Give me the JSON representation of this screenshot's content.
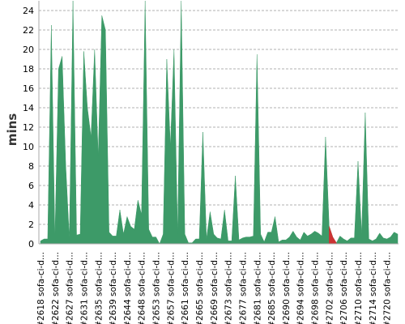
{
  "chart_data": {
    "type": "area",
    "y_label": "mins",
    "categories": [
      "#2618 sofa-ci-d...",
      null,
      null,
      null,
      "#2622 sofa-ci-d...",
      null,
      null,
      null,
      "#2627 sofa-ci-d...",
      null,
      null,
      null,
      "#2631 sofa-ci-d...",
      null,
      null,
      null,
      "#2635 sofa-ci-d...",
      null,
      null,
      null,
      "#2639 sofa-ci-d...",
      null,
      null,
      null,
      "#2644 sofa-ci-d...",
      null,
      null,
      null,
      "#2648 sofa-ci-d...",
      null,
      null,
      null,
      "#2653 sofa-ci-d...",
      null,
      null,
      null,
      "#2657 sofa-ci-d...",
      null,
      null,
      null,
      "#2661 sofa-ci-d...",
      null,
      null,
      null,
      "#2665 sofa-ci-d...",
      null,
      null,
      null,
      "#2669 sofa-ci-d...",
      null,
      null,
      null,
      "#2673 sofa-ci-d...",
      null,
      null,
      null,
      "#2677 sofa-ci-d...",
      null,
      null,
      null,
      "#2681 sofa-ci-d...",
      null,
      null,
      null,
      "#2685 sofa-ci-d...",
      null,
      null,
      null,
      "#2690 sofa-ci-d...",
      null,
      null,
      null,
      "#2694 sofa-ci-d...",
      null,
      null,
      null,
      "#2698 sofa-ci-d...",
      null,
      null,
      null,
      "#2702 sofa-ci-d...",
      null,
      null,
      null,
      "#2706 sofa-ci-d...",
      null,
      null,
      null,
      "#2710 sofa-ci-d...",
      null,
      null,
      null,
      "#2714 sofa-ci-d...",
      null,
      null,
      null,
      "#2720 sofa-ci-d...",
      null,
      null,
      null
    ],
    "values": [
      0.3,
      0.5,
      0.5,
      22.5,
      0.5,
      18,
      19.3,
      8,
      0.5,
      25,
      0.9,
      1,
      19.8,
      14,
      11,
      20,
      9,
      23.5,
      22,
      1.2,
      0.8,
      0.8,
      3.5,
      1,
      2.8,
      1.8,
      1.5,
      4.5,
      3,
      25,
      1.5,
      0.7,
      0.7,
      0,
      1,
      19,
      10,
      20,
      1,
      25,
      1,
      0.1,
      0.1,
      0.5,
      0.5,
      11.5,
      0.5,
      3.3,
      1,
      0.6,
      0.5,
      3.5,
      0.3,
      0.3,
      7,
      0.4,
      0.6,
      0.7,
      0.7,
      0.8,
      19.5,
      1,
      0.2,
      1.2,
      1.2,
      2.8,
      0.2,
      0.4,
      0.4,
      0.7,
      1.3,
      0.7,
      0.4,
      1.2,
      0.8,
      1,
      1.3,
      1.1,
      0.8,
      11,
      1.8,
      0.7,
      0.1,
      0.8,
      0.5,
      0.3,
      0.6,
      0.6,
      8.5,
      1,
      13.5,
      0.5,
      0.3,
      0.5,
      1.1,
      0.6,
      0.5,
      0.7,
      1.2,
      1
    ],
    "color": "#3d9a68",
    "highlight_range": [
      80,
      82
    ],
    "highlight_color": "#cc3333",
    "ylim": [
      0,
      25
    ],
    "yticks": [
      0,
      2,
      4,
      6,
      8,
      10,
      12,
      14,
      16,
      18,
      20,
      22,
      24
    ],
    "grid": true
  }
}
